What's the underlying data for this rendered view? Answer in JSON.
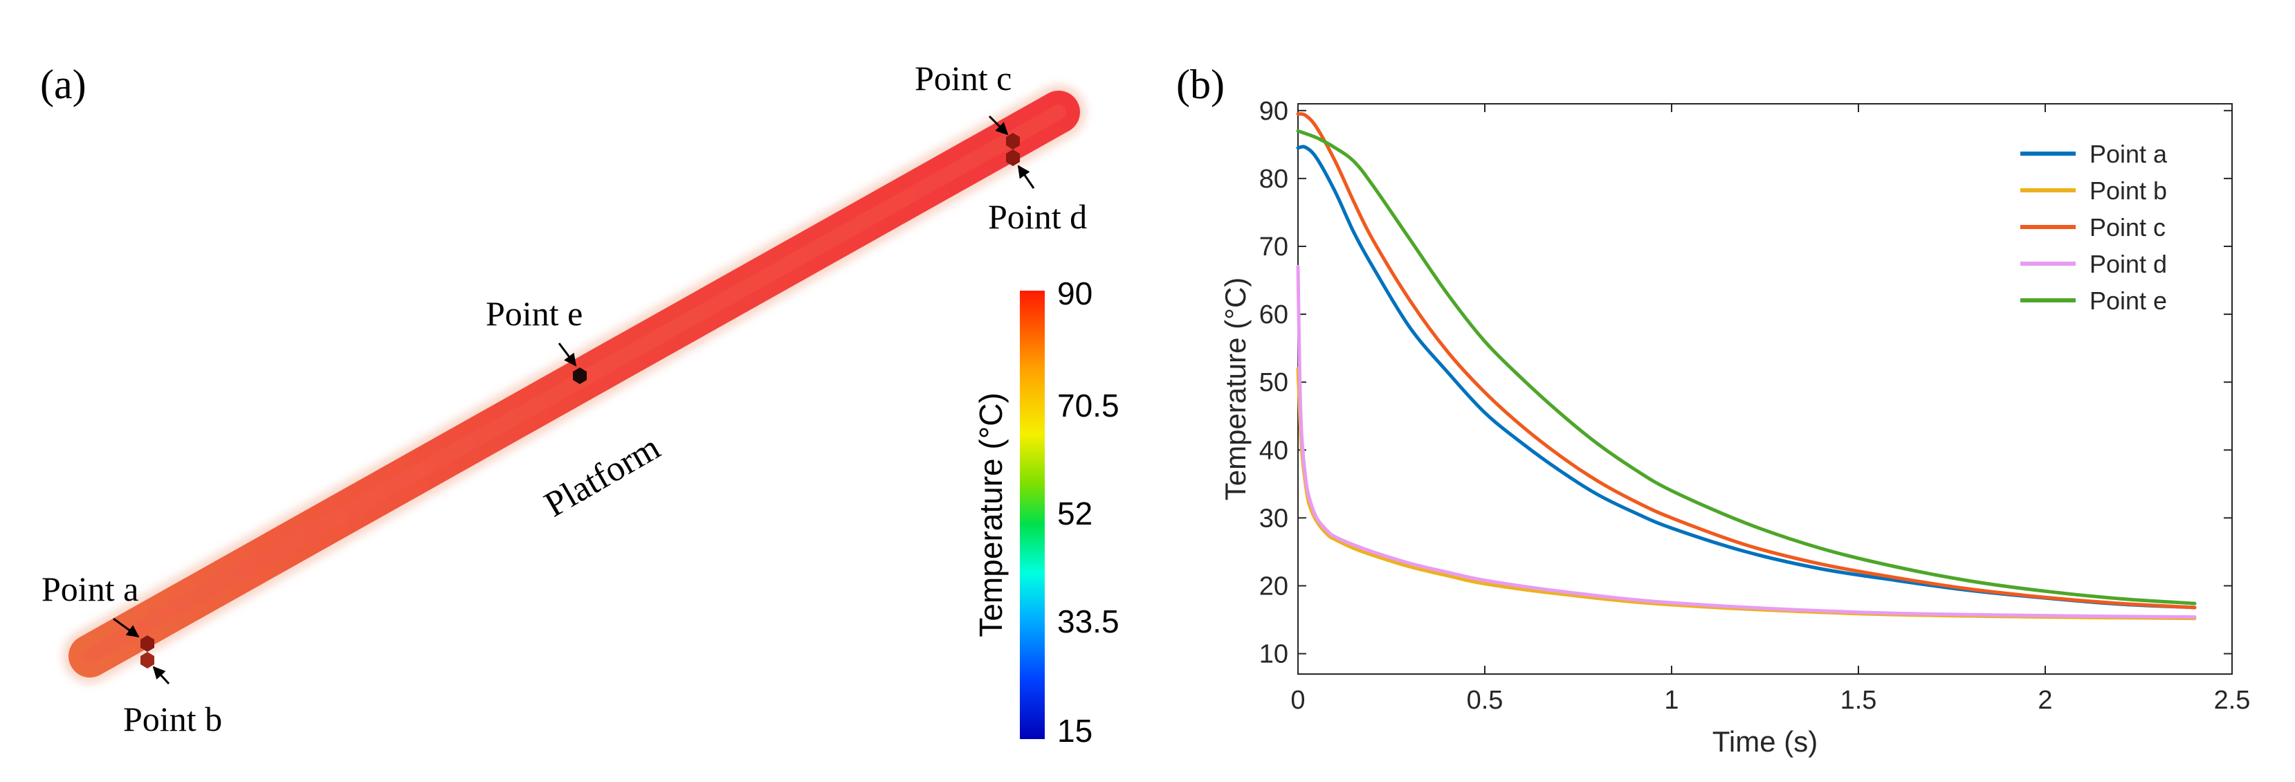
{
  "panel_a": {
    "label": "(a)",
    "platform_label": "Platform",
    "points": {
      "a": "Point a",
      "b": "Point b",
      "c": "Point c",
      "d": "Point d",
      "e": "Point e"
    },
    "colorbar": {
      "title": "Temperature (°C)",
      "ticks": [
        "90",
        "70.5",
        "52",
        "33.5",
        "15"
      ],
      "min": 15,
      "max": 90
    }
  },
  "panel_b": {
    "label": "(b)"
  },
  "colors": {
    "point_a": "#0072BD",
    "point_b": "#EDB120",
    "point_c": "#F05A1E",
    "point_d": "#E89BF2",
    "point_e": "#4DA62A",
    "rod": "#F03A2E",
    "marker": "#8B1A10"
  },
  "chart_data": {
    "type": "line",
    "title": "",
    "xlabel": "Time (s)",
    "ylabel": "Temperature (°C)",
    "xlim": [
      0,
      2.5
    ],
    "ylim": [
      7,
      91
    ],
    "xticks": [
      0,
      0.5,
      1,
      1.5,
      2,
      2.5
    ],
    "xtick_labels": [
      "0",
      "0.5",
      "1",
      "1.5",
      "2",
      "2.5"
    ],
    "yticks": [
      10,
      20,
      30,
      40,
      50,
      60,
      70,
      80,
      90
    ],
    "ytick_labels": [
      "10",
      "20",
      "30",
      "40",
      "50",
      "60",
      "70",
      "80",
      "90"
    ],
    "grid": false,
    "legend_position": "top-right",
    "series": [
      {
        "name": "Point  a",
        "color": "#0072BD",
        "x": [
          0,
          0.02,
          0.05,
          0.1,
          0.15,
          0.2,
          0.3,
          0.4,
          0.5,
          0.6,
          0.7,
          0.8,
          0.9,
          1.0,
          1.2,
          1.4,
          1.6,
          1.8,
          2.0,
          2.2,
          2.4
        ],
        "y": [
          84.5,
          84.6,
          83,
          78,
          72,
          67,
          58,
          51.5,
          45.5,
          41,
          37,
          33.5,
          30.8,
          28.5,
          25,
          22.5,
          20.8,
          19.3,
          18.2,
          17.3,
          16.8
        ]
      },
      {
        "name": "Point  b",
        "color": "#EDB120",
        "x": [
          0,
          0.005,
          0.01,
          0.02,
          0.03,
          0.05,
          0.08,
          0.1,
          0.15,
          0.2,
          0.3,
          0.4,
          0.5,
          0.7,
          1.0,
          1.5,
          2.0,
          2.4
        ],
        "y": [
          52,
          45,
          40,
          35,
          32,
          29.5,
          27.5,
          26.8,
          25.5,
          24.5,
          22.8,
          21.5,
          20.3,
          18.8,
          17.2,
          15.9,
          15.4,
          15.2
        ]
      },
      {
        "name": "Point  c",
        "color": "#F05A1E",
        "x": [
          0,
          0.02,
          0.05,
          0.1,
          0.15,
          0.2,
          0.3,
          0.4,
          0.5,
          0.6,
          0.7,
          0.8,
          0.9,
          1.0,
          1.2,
          1.4,
          1.6,
          1.8,
          2.0,
          2.2,
          2.4
        ],
        "y": [
          89.5,
          89.3,
          87.5,
          82.5,
          76.5,
          71,
          62,
          54.5,
          48.5,
          43.5,
          39.2,
          35.5,
          32.5,
          30,
          26,
          23.2,
          21.2,
          19.5,
          18.3,
          17.4,
          16.8
        ]
      },
      {
        "name": "Point  d",
        "color": "#E89BF2",
        "x": [
          0,
          0.005,
          0.01,
          0.02,
          0.03,
          0.05,
          0.08,
          0.1,
          0.15,
          0.2,
          0.3,
          0.4,
          0.5,
          0.7,
          1.0,
          1.5,
          2.0,
          2.4
        ],
        "y": [
          67,
          50,
          42,
          36,
          33,
          30,
          28,
          27.2,
          26,
          25,
          23.3,
          22,
          20.8,
          19.2,
          17.5,
          16.1,
          15.6,
          15.4
        ]
      },
      {
        "name": "Point  e",
        "color": "#4DA62A",
        "x": [
          0,
          0.05,
          0.1,
          0.15,
          0.2,
          0.3,
          0.4,
          0.5,
          0.6,
          0.7,
          0.8,
          0.9,
          1.0,
          1.2,
          1.4,
          1.6,
          1.8,
          2.0,
          2.2,
          2.4
        ],
        "y": [
          87,
          86,
          84.5,
          82.5,
          79,
          71,
          63,
          56,
          50.5,
          45.5,
          41,
          37.2,
          34,
          29.2,
          25.5,
          22.8,
          20.7,
          19.2,
          18.1,
          17.4
        ]
      }
    ]
  }
}
